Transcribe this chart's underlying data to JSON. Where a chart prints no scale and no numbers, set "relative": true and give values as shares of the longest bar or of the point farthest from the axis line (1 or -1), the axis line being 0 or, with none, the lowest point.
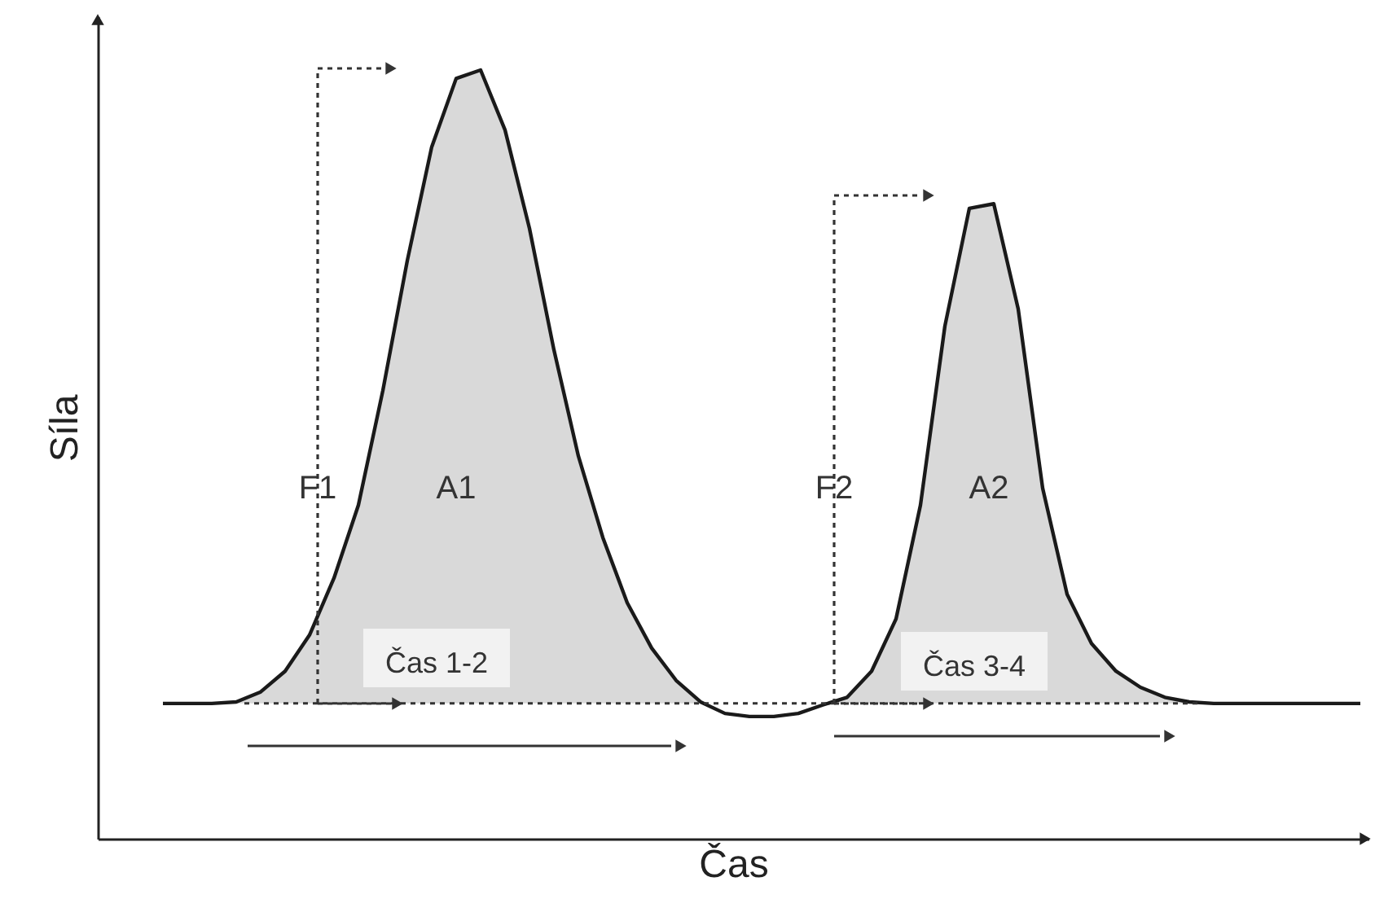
{
  "chart_data": {
    "type": "line",
    "relative": true,
    "xlabel": "Čas",
    "ylabel": "Síla",
    "categories": [
      null,
      null,
      null,
      null,
      null,
      null,
      null,
      null,
      null,
      null,
      null,
      null,
      null,
      null,
      null,
      null,
      null,
      null,
      null,
      null,
      null,
      null,
      null,
      null,
      null,
      null,
      null,
      null,
      null,
      null,
      null,
      null,
      null,
      null,
      null,
      null,
      null,
      null,
      null,
      null,
      null,
      null,
      null,
      null,
      null,
      null,
      null,
      null,
      null,
      null
    ],
    "series": [
      {
        "color": "#1a1a1a",
        "values": [
          0.176,
          0.176,
          0.176,
          0.178,
          0.191,
          0.218,
          0.265,
          0.339,
          0.434,
          0.583,
          0.752,
          0.9,
          0.989,
          1.0,
          0.922,
          0.794,
          0.636,
          0.498,
          0.392,
          0.307,
          0.248,
          0.206,
          0.178,
          0.163,
          0.159,
          0.159,
          0.163,
          0.174,
          0.184,
          0.218,
          0.286,
          0.434,
          0.667,
          0.82,
          0.826,
          0.689,
          0.456,
          0.318,
          0.254,
          0.218,
          0.197,
          0.184,
          0.178,
          0.176,
          0.176,
          0.176,
          0.176,
          0.176,
          0.176,
          0.176
        ],
        "lower": [
          null,
          null,
          null,
          0.176,
          0.176,
          0.176,
          0.176,
          0.176,
          0.176,
          0.176,
          0.176,
          0.176,
          0.176,
          0.176,
          0.176,
          0.176,
          0.176,
          0.176,
          0.176,
          0.176,
          0.176,
          0.176,
          0.176,
          null,
          null,
          null,
          null,
          0.174,
          0.176,
          0.176,
          0.176,
          0.176,
          0.176,
          0.176,
          0.176,
          0.176,
          0.176,
          0.176,
          0.176,
          0.176,
          0.176,
          0.176,
          0.176,
          null,
          null,
          null,
          null,
          null,
          null,
          null
        ],
        "upper": [
          null,
          null,
          null,
          0.178,
          0.191,
          0.218,
          0.265,
          0.339,
          0.434,
          0.583,
          0.752,
          0.9,
          0.989,
          1.0,
          0.922,
          0.794,
          0.636,
          0.498,
          0.392,
          0.307,
          0.248,
          0.206,
          0.178,
          null,
          null,
          null,
          null,
          0.174,
          0.184,
          0.218,
          0.286,
          0.434,
          0.667,
          0.82,
          0.826,
          0.689,
          0.456,
          0.318,
          0.254,
          0.218,
          0.197,
          0.184,
          0.178,
          null,
          null,
          null,
          null,
          null,
          null,
          null
        ]
      }
    ],
    "ref_lines": [
      {
        "axis": "y",
        "value": 0.176,
        "line_style": "dotted"
      }
    ],
    "annotations": [
      "F1",
      "A1",
      "F2",
      "A2",
      "Čas 1-2",
      "Čas 3-4"
    ]
  }
}
